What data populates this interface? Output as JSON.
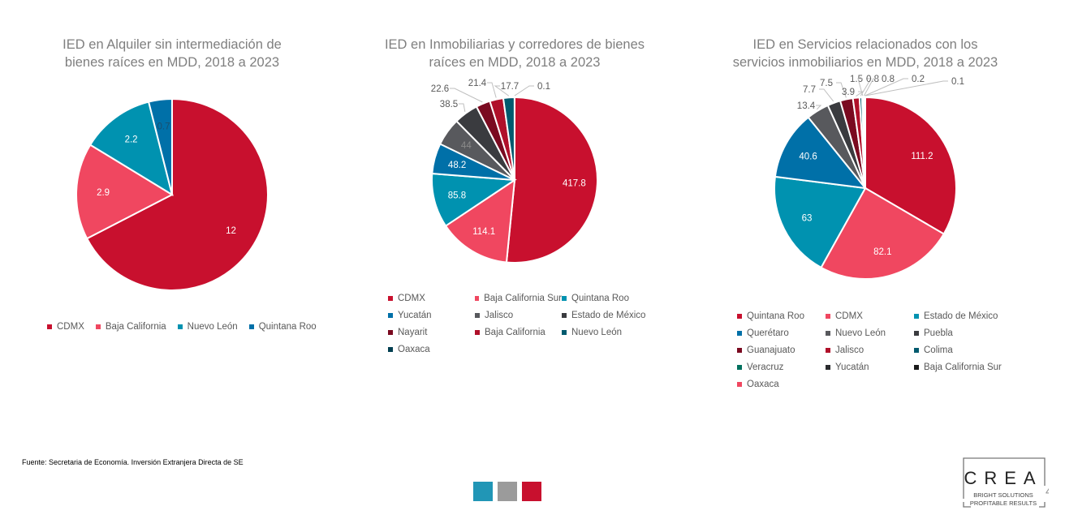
{
  "chart_data": [
    {
      "type": "pie",
      "title": "IED en Alquiler sin intermediación de bienes raíces en MDD, 2018 a 2023",
      "title_lines": [
        "IED en Alquiler sin intermediación de",
        "bienes raíces en MDD, 2018 a 2023"
      ],
      "legend_position": "bottom",
      "categories": [
        "CDMX",
        "Baja California",
        "Nuevo León",
        "Quintana Roo"
      ],
      "values": [
        12,
        2.9,
        2.2,
        0.7
      ],
      "colors": [
        "#C8102E",
        "#F04760",
        "#0092B0",
        "#0070A8"
      ]
    },
    {
      "type": "pie",
      "title": "IED en Inmobiliarias y corredores de bienes raíces en MDD, 2018 a 2023",
      "title_lines": [
        "IED en Inmobiliarias y corredores de bienes",
        "raíces en MDD, 2018 a 2023"
      ],
      "legend_position": "bottom",
      "categories": [
        "CDMX",
        "Baja California Sur",
        "Quintana Roo",
        "Yucatán",
        "Jalisco",
        "Estado de México",
        "Nayarit",
        "Baja California",
        "Nuevo León",
        "Oaxaca"
      ],
      "values": [
        417.8,
        114.1,
        85.8,
        48.2,
        44,
        38.5,
        22.6,
        21.4,
        17.7,
        0.1
      ],
      "colors": [
        "#C8102E",
        "#F04760",
        "#0092B0",
        "#0070A8",
        "#58595D",
        "#3A3B3F",
        "#7A0A20",
        "#B0102A",
        "#005A6E",
        "#003E50"
      ]
    },
    {
      "type": "pie",
      "title": "IED en Servicios relacionados con los servicios inmobiliarios en MDD, 2018 a 2023",
      "title_lines": [
        "IED en Servicios relacionados con los",
        "servicios inmobiliarios en MDD, 2018 a 2023"
      ],
      "legend_position": "bottom",
      "categories": [
        "Quintana Roo",
        "CDMX",
        "Estado de México",
        "Querétaro",
        "Nuevo León",
        "Puebla",
        "Guanajuato",
        "Jalisco",
        "Colima",
        "Veracruz",
        "Yucatán",
        "Baja California Sur",
        "Oaxaca"
      ],
      "values": [
        111.2,
        82.1,
        63,
        40.6,
        13.4,
        7.7,
        7.5,
        3.9,
        1.5,
        0.8,
        0.8,
        0.2,
        0.1
      ],
      "colors": [
        "#C8102E",
        "#F04760",
        "#0092B0",
        "#0070A8",
        "#58595D",
        "#3A3B3F",
        "#7A0A20",
        "#B0102A",
        "#005A6E",
        "#00705E",
        "#2A2B2E",
        "#1A1A1A",
        "#F04760"
      ]
    }
  ],
  "footer": {
    "source": "Fuente: Secretaria de Economía. Inversión Extranjera Directa de SE"
  },
  "brand": {
    "name": "CREA",
    "tagline1": "BRIGHT SOLUTIONS",
    "tagline2": "PROFITABLE RESULTS",
    "page_number": "4",
    "square_colors": [
      "#2196B6",
      "#9B9B9B",
      "#C8102E"
    ]
  }
}
